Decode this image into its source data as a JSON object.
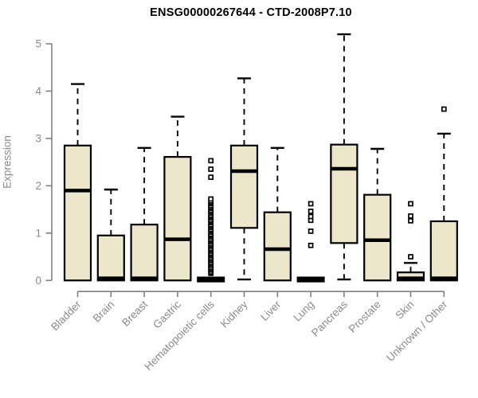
{
  "colors": {
    "box_fill": "#ece7cb",
    "box_stroke": "#000000",
    "median": "#000000",
    "axis": "#808080",
    "label_text": "#8b8b8b",
    "title_text": "#000000",
    "background": "#ffffff"
  },
  "chart_data": {
    "type": "boxplot",
    "title": "ENSG00000267644 - CTD-2008P7.10",
    "xlabel": "",
    "ylabel": "Expression",
    "ylim": [
      0,
      5
    ],
    "yticks": [
      0,
      1,
      2,
      3,
      4,
      5
    ],
    "grid": false,
    "legend": false,
    "categories": [
      "Bladder",
      "Brain",
      "Breast",
      "Gastric",
      "Hematopoietic cells",
      "Kidney",
      "Liver",
      "Lung",
      "Pancreas",
      "Prostate",
      "Skin",
      "Unknown / Other"
    ],
    "boxes": [
      {
        "category": "Bladder",
        "low": null,
        "q1": 0,
        "median": 1.9,
        "q3": 2.85,
        "high": 4.15,
        "outliers": []
      },
      {
        "category": "Brain",
        "low": null,
        "q1": 0,
        "median": 0.02,
        "q3": 0.95,
        "high": 1.92,
        "outliers": []
      },
      {
        "category": "Breast",
        "low": null,
        "q1": 0,
        "median": 0.02,
        "q3": 1.18,
        "high": 2.8,
        "outliers": []
      },
      {
        "category": "Gastric",
        "low": null,
        "q1": 0,
        "median": 0.87,
        "q3": 2.61,
        "high": 3.46,
        "outliers": []
      },
      {
        "category": "Hematopoietic cells",
        "low": null,
        "q1": 0,
        "median": 0.02,
        "q3": 0.04,
        "high": null,
        "outliers": [
          0.15,
          0.18,
          0.22,
          0.25,
          0.28,
          0.32,
          0.35,
          0.38,
          0.42,
          0.45,
          0.48,
          0.52,
          0.55,
          0.58,
          0.62,
          0.65,
          0.68,
          0.72,
          0.75,
          0.78,
          0.82,
          0.85,
          0.88,
          0.92,
          0.95,
          0.98,
          1.02,
          1.05,
          1.08,
          1.12,
          1.15,
          1.18,
          1.22,
          1.25,
          1.28,
          1.32,
          1.35,
          1.38,
          1.42,
          1.45,
          1.48,
          1.52,
          1.55,
          1.58,
          1.62,
          1.65,
          1.68,
          1.72,
          2.18,
          2.35,
          2.53
        ]
      },
      {
        "category": "Kidney",
        "low": 0.02,
        "q1": 1.11,
        "median": 2.31,
        "q3": 2.85,
        "high": 4.27,
        "outliers": []
      },
      {
        "category": "Liver",
        "low": null,
        "q1": 0,
        "median": 0.66,
        "q3": 1.44,
        "high": 2.8,
        "outliers": []
      },
      {
        "category": "Lung",
        "low": null,
        "q1": 0,
        "median": 0.02,
        "q3": 0.04,
        "high": null,
        "outliers": [
          0.74,
          1.04,
          1.27,
          1.35,
          1.46,
          1.62
        ]
      },
      {
        "category": "Pancreas",
        "low": 0.02,
        "q1": 0.79,
        "median": 2.36,
        "q3": 2.87,
        "high": 5.2,
        "outliers": []
      },
      {
        "category": "Prostate",
        "low": null,
        "q1": 0,
        "median": 0.85,
        "q3": 1.81,
        "high": 2.78,
        "outliers": []
      },
      {
        "category": "Skin",
        "low": null,
        "q1": 0,
        "median": 0.02,
        "q3": 0.17,
        "high": 0.37,
        "outliers": [
          0.5,
          1.26,
          1.36,
          1.62
        ]
      },
      {
        "category": "Unknown / Other",
        "low": null,
        "q1": 0,
        "median": 0.02,
        "q3": 1.25,
        "high": 3.1,
        "outliers": [
          3.62
        ]
      }
    ]
  }
}
